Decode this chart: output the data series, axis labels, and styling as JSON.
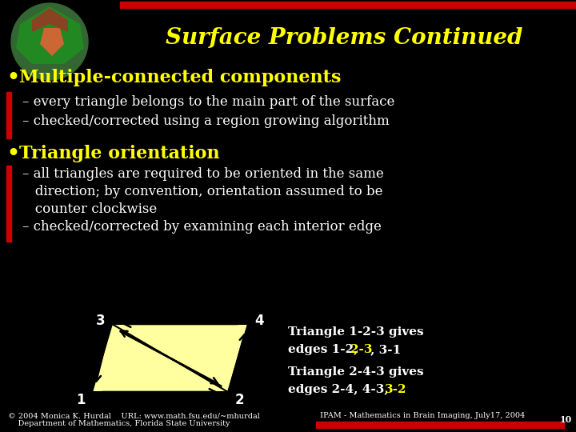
{
  "bg_color": "#000000",
  "title": "Surface Problems Continued",
  "title_color": "#ffff00",
  "title_fontsize": 20,
  "red_bar_color": "#cc0000",
  "bullet1_text": "Multiple-connected components",
  "bullet1_color": "#ffff00",
  "bullet1_fontsize": 16,
  "sub1_lines": [
    "– every triangle belongs to the main part of the surface",
    "– checked/corrected using a region growing algorithm"
  ],
  "sub1_color": "#ffffff",
  "sub1_fontsize": 12,
  "bullet2_text": "Triangle orientation",
  "bullet2_color": "#ffff00",
  "bullet2_fontsize": 16,
  "sub2_lines": [
    "– all triangles are required to be oriented in the same",
    "   direction; by convention, orientation assumed to be",
    "   counter clockwise",
    "– checked/corrected by examining each interior edge"
  ],
  "sub2_color": "#ffffff",
  "sub2_fontsize": 12,
  "tri_fill_color": "#ffffa0",
  "tri_edge_color": "#000000",
  "node_label_color": "#ffffff",
  "footer_left_line1": "© 2004 Monica K. Hurdal    URL: www.math.fsu.edu/~mhurdal",
  "footer_left_line2": "    Department of Mathematics, Florida State University",
  "footer_right": "IPAM - Mathematics in Brain Imaging, July17, 2004",
  "footer_color": "#ffffff",
  "footer_fontsize": 7,
  "page_num": "10"
}
